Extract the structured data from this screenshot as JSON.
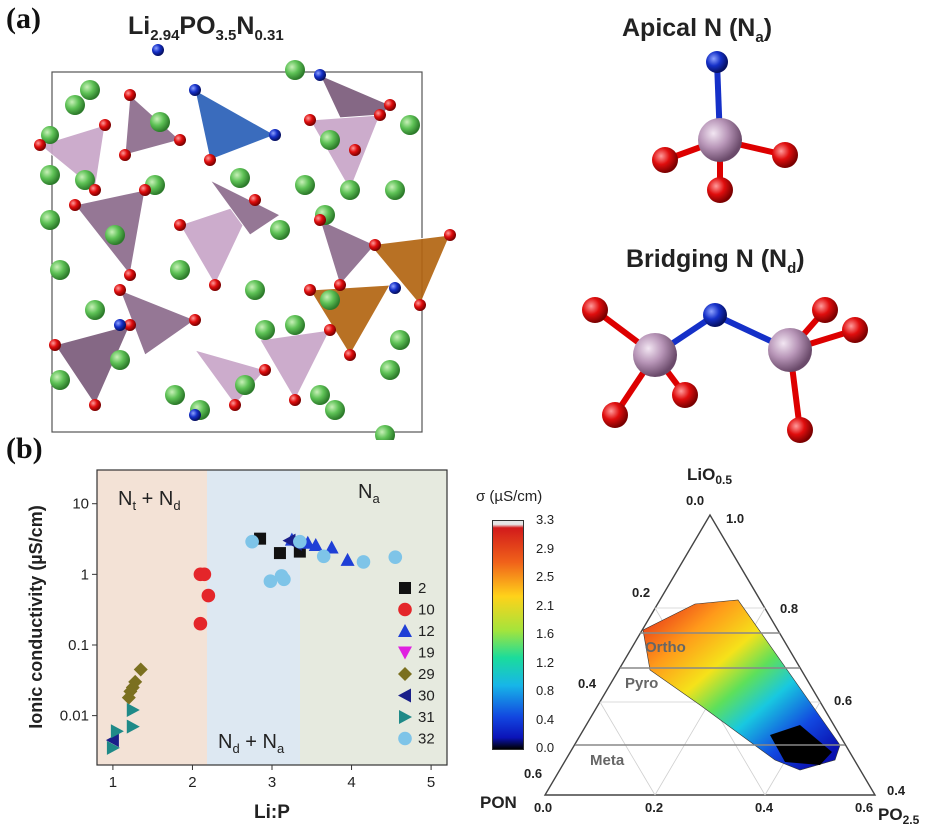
{
  "panel_a": {
    "label": "(a)",
    "formula": {
      "base1": "Li",
      "sub1": "2.94",
      "base2": "PO",
      "sub2": "3.5",
      "base3": "N",
      "sub3": "0.31"
    },
    "apical_title": {
      "main": "Apical N (N",
      "sub": "a",
      "close": ")"
    },
    "bridging_title": {
      "main": "Bridging N (N",
      "sub": "d",
      "close": ")"
    }
  },
  "panel_b": {
    "label": "(b)",
    "colors": {
      "region1": "#f3e2d6",
      "region2": "#dde8f2",
      "region3": "#e6eadf"
    },
    "region_labels": {
      "r1": {
        "main1": "N",
        "sub1": "t",
        "mid": " + N",
        "sub2": "d"
      },
      "r2": {
        "main1": "N",
        "sub1": "d",
        "mid": " + N",
        "sub2": "a"
      },
      "r3": {
        "main1": "N",
        "sub1": "a"
      }
    },
    "legend": [
      "2",
      "10",
      "12",
      "19",
      "29",
      "30",
      "31",
      "32"
    ],
    "colorbar": {
      "title": "σ (µS/cm)",
      "ticks": [
        "3.3",
        "2.9",
        "2.5",
        "2.1",
        "1.6",
        "1.2",
        "0.8",
        "0.4",
        "0.0"
      ]
    },
    "ternary": {
      "top_label": "LiO",
      "top_sub": "0.5",
      "left_label": "PON",
      "right_label": "PO",
      "right_sub": "2.5",
      "left_ticks": [
        "0.0",
        "0.2",
        "0.4",
        "0.6"
      ],
      "right_ticks": [
        "1.0",
        "0.8",
        "0.6",
        "0.4"
      ],
      "bottom_ticks": [
        "0.0",
        "0.2",
        "0.4",
        "0.6"
      ],
      "zones": [
        "Ortho",
        "Pyro",
        "Meta"
      ]
    }
  },
  "chart_data": {
    "type": "scatter",
    "xlabel": "Li:P",
    "ylabel": "Ionic conductivity (µS/cm)",
    "xlim": [
      0.8,
      5.2
    ],
    "ylim": [
      0.002,
      30
    ],
    "yscale": "log",
    "x_ticks": [
      "1",
      "2",
      "3",
      "4",
      "5"
    ],
    "y_ticks": [
      "0.01",
      "0.1",
      "1",
      "10"
    ],
    "legend_position": "right",
    "series": [
      {
        "name": "2",
        "color": "#111111",
        "marker": "square",
        "x": [
          2.85,
          3.1,
          3.35
        ],
        "y": [
          3.2,
          2.0,
          2.1
        ]
      },
      {
        "name": "10",
        "color": "#e4262a",
        "marker": "circle",
        "x": [
          2.1,
          2.15,
          2.2,
          2.1
        ],
        "y": [
          0.2,
          1.0,
          0.5,
          1.0
        ]
      },
      {
        "name": "12",
        "color": "#1f3fd6",
        "marker": "triangle-up",
        "x": [
          3.25,
          3.45,
          3.55,
          3.75,
          3.95
        ],
        "y": [
          3.1,
          2.8,
          2.6,
          2.4,
          1.6
        ]
      },
      {
        "name": "19",
        "color": "#e020e0",
        "marker": "triangle-down",
        "x": [],
        "y": []
      },
      {
        "name": "29",
        "color": "#7b7020",
        "marker": "diamond",
        "x": [
          1.2,
          1.22,
          1.25,
          1.28,
          1.35
        ],
        "y": [
          0.018,
          0.022,
          0.025,
          0.03,
          0.045
        ]
      },
      {
        "name": "30",
        "color": "#1a1f8a",
        "marker": "triangle-left",
        "x": [
          1.0,
          3.22,
          3.3
        ],
        "y": [
          0.0045,
          3.0,
          2.7
        ]
      },
      {
        "name": "31",
        "color": "#1f8a88",
        "marker": "triangle-right",
        "x": [
          1.0,
          1.05,
          1.25,
          1.25
        ],
        "y": [
          0.0035,
          0.006,
          0.007,
          0.012
        ]
      },
      {
        "name": "32",
        "color": "#7ec4e8",
        "marker": "circle",
        "x": [
          2.75,
          2.98,
          3.12,
          3.15,
          3.35,
          3.65,
          4.15,
          4.55
        ],
        "y": [
          2.9,
          0.8,
          0.95,
          0.85,
          2.9,
          1.8,
          1.5,
          1.75
        ]
      }
    ]
  }
}
